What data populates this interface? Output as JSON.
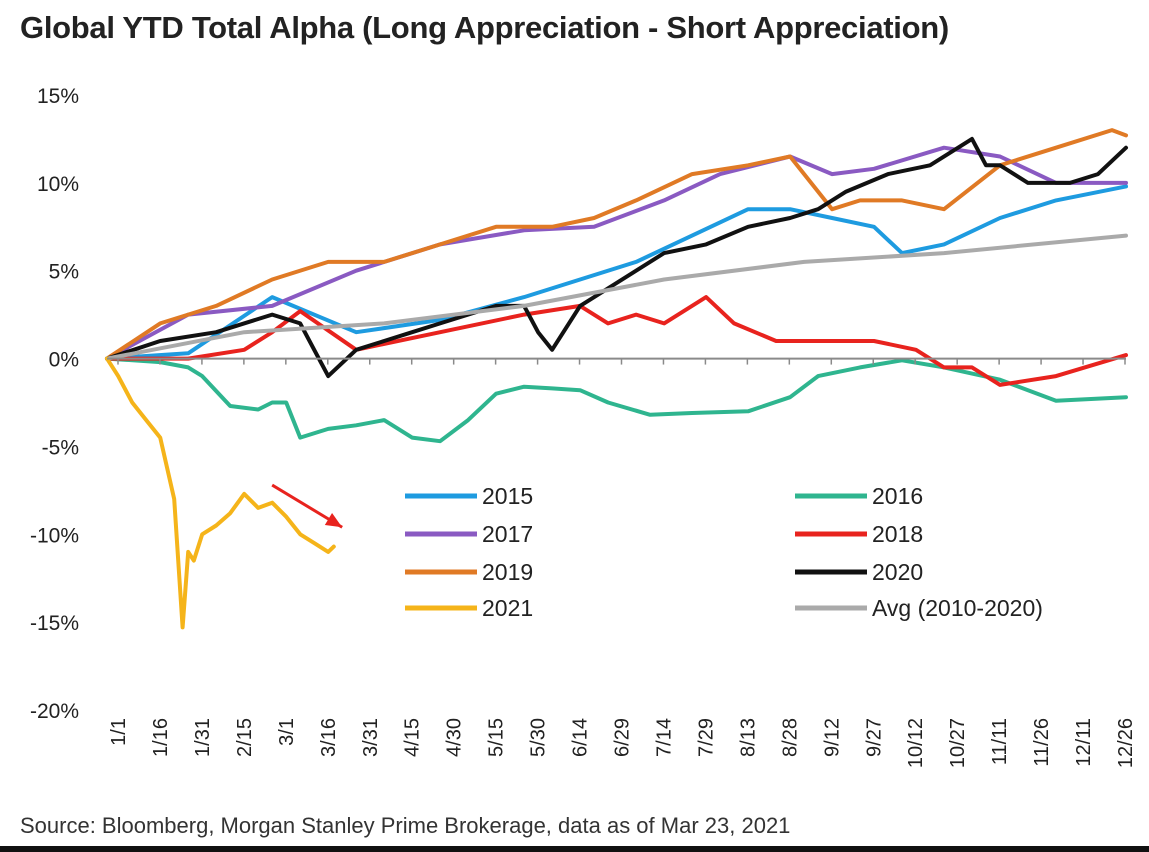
{
  "chart_data": {
    "type": "line",
    "title": "Global YTD Total Alpha (Long Appreciation - Short Appreciation)",
    "xlabel": "",
    "ylabel": "",
    "ylim": [
      -20,
      15
    ],
    "y_ticks": [
      15,
      10,
      5,
      0,
      -5,
      -10,
      -15,
      -20
    ],
    "y_tick_labels": [
      "15%",
      "10%",
      "5%",
      "0%",
      "-5%",
      "-10%",
      "-15%",
      "-20%"
    ],
    "x_ticks": [
      "1/1",
      "1/16",
      "1/31",
      "2/15",
      "3/1",
      "3/16",
      "3/31",
      "4/15",
      "4/30",
      "5/15",
      "5/30",
      "6/14",
      "6/29",
      "7/14",
      "7/29",
      "8/13",
      "8/28",
      "9/12",
      "9/27",
      "10/12",
      "10/27",
      "11/11",
      "11/26",
      "12/11",
      "12/26"
    ],
    "x_unit": "day of year (1 = 1/1)",
    "xlim": [
      1,
      365
    ],
    "grid": false,
    "legend_position": "center",
    "series": [
      {
        "name": "2015",
        "color": "#1e9be0",
        "x": [
          1,
          30,
          60,
          90,
          120,
          150,
          170,
          190,
          210,
          230,
          245,
          260,
          275,
          285,
          300,
          320,
          340,
          365
        ],
        "y": [
          0,
          0.3,
          3.5,
          1.5,
          2.2,
          3.5,
          4.5,
          5.5,
          7,
          8.5,
          8.5,
          8,
          7.5,
          6,
          6.5,
          8,
          9,
          9.8
        ]
      },
      {
        "name": "2016",
        "color": "#2fb58f",
        "x": [
          1,
          20,
          30,
          35,
          45,
          55,
          60,
          65,
          70,
          80,
          90,
          100,
          110,
          120,
          130,
          140,
          150,
          160,
          170,
          180,
          195,
          210,
          230,
          245,
          255,
          270,
          285,
          300,
          320,
          340,
          365
        ],
        "y": [
          0,
          -0.2,
          -0.5,
          -1,
          -2.7,
          -2.9,
          -2.5,
          -2.5,
          -4.5,
          -4,
          -3.8,
          -3.5,
          -4.5,
          -4.7,
          -3.5,
          -2,
          -1.6,
          -1.7,
          -1.8,
          -2.5,
          -3.2,
          -3.1,
          -3,
          -2.2,
          -1,
          -0.5,
          -0.1,
          -0.5,
          -1.2,
          -2.4,
          -2.2
        ]
      },
      {
        "name": "2017",
        "color": "#8a5ac2",
        "x": [
          1,
          30,
          60,
          90,
          120,
          150,
          175,
          200,
          220,
          245,
          260,
          275,
          300,
          320,
          340,
          365
        ],
        "y": [
          0,
          2.5,
          3,
          5,
          6.5,
          7.3,
          7.5,
          9,
          10.5,
          11.5,
          10.5,
          10.8,
          12,
          11.5,
          10,
          10
        ]
      },
      {
        "name": "2018",
        "color": "#e8231e",
        "x": [
          1,
          30,
          50,
          60,
          70,
          90,
          120,
          150,
          170,
          180,
          190,
          200,
          215,
          225,
          240,
          255,
          275,
          290,
          300,
          310,
          320,
          340,
          365
        ],
        "y": [
          0,
          0,
          0.5,
          1.5,
          2.7,
          0.5,
          1.5,
          2.5,
          3,
          2,
          2.5,
          2,
          3.5,
          2,
          1,
          1,
          1,
          0.5,
          -0.5,
          -0.5,
          -1.5,
          -1,
          0.2
        ]
      },
      {
        "name": "2019",
        "color": "#e07a25",
        "x": [
          1,
          20,
          40,
          60,
          80,
          100,
          120,
          140,
          160,
          175,
          190,
          210,
          230,
          245,
          260,
          270,
          285,
          300,
          320,
          340,
          360,
          365
        ],
        "y": [
          0,
          2,
          3,
          4.5,
          5.5,
          5.5,
          6.5,
          7.5,
          7.5,
          8,
          9,
          10.5,
          11,
          11.5,
          8.5,
          9,
          9,
          8.5,
          11,
          12,
          13,
          12.7
        ]
      },
      {
        "name": "2020",
        "color": "#111111",
        "x": [
          1,
          20,
          40,
          60,
          70,
          75,
          80,
          90,
          100,
          110,
          120,
          140,
          150,
          155,
          160,
          170,
          180,
          190,
          200,
          215,
          230,
          245,
          255,
          265,
          280,
          295,
          310,
          315,
          320,
          330,
          345,
          355,
          365
        ],
        "y": [
          0,
          1,
          1.5,
          2.5,
          2,
          0.5,
          -1,
          0.5,
          1,
          1.5,
          2,
          3,
          3,
          1.5,
          0.5,
          3,
          4,
          5,
          6,
          6.5,
          7.5,
          8,
          8.5,
          9.5,
          10.5,
          11,
          12.5,
          11,
          11,
          10,
          10,
          10.5,
          12
        ]
      },
      {
        "name": "Avg (2010-2020)",
        "color": "#aaaaaa",
        "x": [
          1,
          50,
          100,
          150,
          200,
          250,
          300,
          365
        ],
        "y": [
          0,
          1.5,
          2,
          3,
          4.5,
          5.5,
          6,
          7
        ]
      },
      {
        "name": "2021",
        "color": "#f5b41a",
        "x": [
          1,
          5,
          10,
          15,
          20,
          25,
          28,
          30,
          32,
          35,
          40,
          45,
          50,
          55,
          60,
          65,
          70,
          75,
          80,
          82
        ],
        "y": [
          0,
          -1,
          -2.5,
          -3.5,
          -4.5,
          -8,
          -15.3,
          -11,
          -11.5,
          -10,
          -9.5,
          -8.8,
          -7.7,
          -8.5,
          -8.2,
          -9,
          -10,
          -10.5,
          -11,
          -10.7
        ]
      }
    ],
    "annotations": [
      {
        "type": "arrow",
        "color": "#e8231e",
        "from_x": 60,
        "from_y": -7.2,
        "to_x": 85,
        "to_y": -9.6
      }
    ]
  },
  "source": "Source: Bloomberg, Morgan Stanley Prime Brokerage, data as of Mar 23, 2021"
}
